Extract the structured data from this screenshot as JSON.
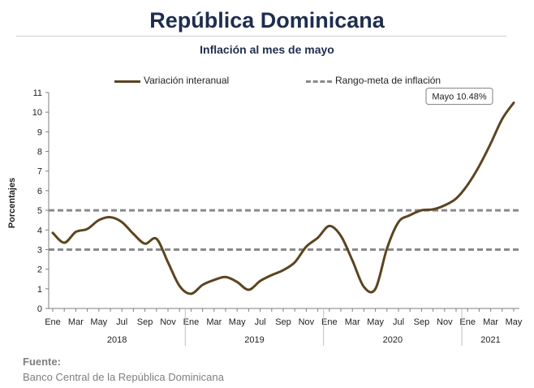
{
  "header": {
    "title": "República Dominicana",
    "subtitle": "Inflación al mes de mayo"
  },
  "legend": {
    "series_label": "Variación interanual",
    "target_label": "Rango-meta de inflación"
  },
  "source": {
    "label": "Fuente:",
    "text": "Banco Central de la República Dominicana"
  },
  "chart_data": {
    "type": "line",
    "title": "Inflación al mes de mayo",
    "xlabel": "",
    "ylabel": "Porcentajes",
    "ylim": [
      0,
      11
    ],
    "yticks": [
      0,
      1,
      2,
      3,
      4,
      5,
      6,
      7,
      8,
      9,
      10,
      11
    ],
    "grid": false,
    "legend_position": "top",
    "colors": {
      "series": "#5b4520",
      "target": "#8a8a8a"
    },
    "x_tick_labels": [
      "Ene",
      "Mar",
      "May",
      "Jul",
      "Sep",
      "Nov",
      "Ene",
      "Mar",
      "May",
      "Jul",
      "Sep",
      "Nov",
      "Ene",
      "Mar",
      "May",
      "Jul",
      "Sep",
      "Nov",
      "Ene",
      "Mar",
      "May"
    ],
    "years": [
      "2018",
      "2019",
      "2020",
      "2021"
    ],
    "series": [
      {
        "name": "Variación interanual",
        "x": [
          "2018-01",
          "2018-02",
          "2018-03",
          "2018-04",
          "2018-05",
          "2018-06",
          "2018-07",
          "2018-08",
          "2018-09",
          "2018-10",
          "2018-11",
          "2018-12",
          "2019-01",
          "2019-02",
          "2019-03",
          "2019-04",
          "2019-05",
          "2019-06",
          "2019-07",
          "2019-08",
          "2019-09",
          "2019-10",
          "2019-11",
          "2019-12",
          "2020-01",
          "2020-02",
          "2020-03",
          "2020-04",
          "2020-05",
          "2020-06",
          "2020-07",
          "2020-08",
          "2020-09",
          "2020-10",
          "2020-11",
          "2020-12",
          "2021-01",
          "2021-02",
          "2021-03",
          "2021-04",
          "2021-05"
        ],
        "values": [
          3.85,
          3.35,
          3.9,
          4.05,
          4.5,
          4.65,
          4.4,
          3.8,
          3.3,
          3.55,
          2.35,
          1.15,
          0.75,
          1.2,
          1.45,
          1.6,
          1.35,
          0.95,
          1.4,
          1.7,
          1.95,
          2.35,
          3.15,
          3.6,
          4.2,
          3.7,
          2.45,
          1.1,
          1.0,
          3.05,
          4.4,
          4.75,
          5.0,
          5.05,
          5.25,
          5.6,
          6.3,
          7.25,
          8.4,
          9.65,
          10.48
        ]
      },
      {
        "name": "Rango-meta de inflación",
        "style": "dashed",
        "values": [
          5,
          3
        ]
      }
    ],
    "annotations": [
      {
        "text": "Mayo 10.48%",
        "x": "2021-05",
        "y": 10.48
      }
    ]
  }
}
